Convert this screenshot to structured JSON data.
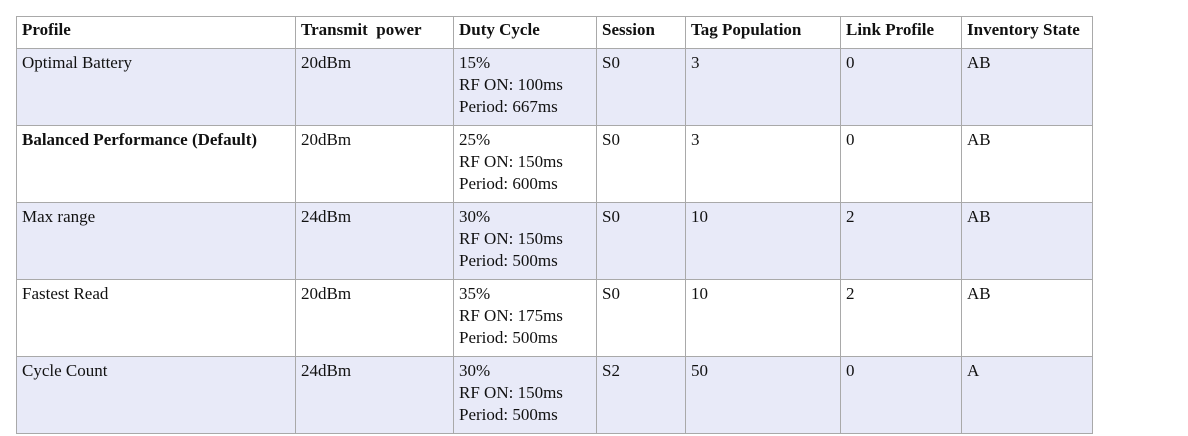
{
  "table": {
    "headers": [
      "Profile",
      "Transmit  power",
      "Duty Cycle",
      "Session",
      "Tag Population",
      "Link Profile",
      "Inventory State"
    ],
    "rows": [
      {
        "profile": "Optimal Battery",
        "transmit_power": "20dBm",
        "duty_cycle": [
          "15%",
          "RF ON: 100ms",
          "Period: 667ms"
        ],
        "session": "S0",
        "tag_population": "3",
        "link_profile": "0",
        "inventory_state": "AB"
      },
      {
        "profile": "Balanced Performance (Default)",
        "transmit_power": "20dBm",
        "duty_cycle": [
          "25%",
          "RF ON: 150ms",
          "Period: 600ms"
        ],
        "session": "S0",
        "tag_population": "3",
        "link_profile": "0",
        "inventory_state": "AB"
      },
      {
        "profile": "Max range",
        "transmit_power": "24dBm",
        "duty_cycle": [
          "30%",
          "RF ON: 150ms",
          "Period: 500ms"
        ],
        "session": "S0",
        "tag_population": "10",
        "link_profile": "2",
        "inventory_state": "AB"
      },
      {
        "profile": "Fastest Read",
        "transmit_power": "20dBm",
        "duty_cycle": [
          "35%",
          "RF ON: 175ms",
          "Period: 500ms"
        ],
        "session": "S0",
        "tag_population": "10",
        "link_profile": "2",
        "inventory_state": "AB"
      },
      {
        "profile": "Cycle Count",
        "transmit_power": "24dBm",
        "duty_cycle": [
          "30%",
          "RF ON: 150ms",
          "Period: 500ms"
        ],
        "session": "S2",
        "tag_population": "50",
        "link_profile": "0",
        "inventory_state": "A"
      }
    ]
  },
  "colors": {
    "shaded_row": "#e8eaf8",
    "plain_row": "#ffffff",
    "border": "#a9a9a9"
  }
}
